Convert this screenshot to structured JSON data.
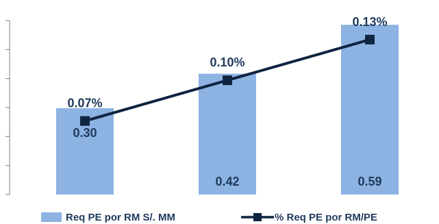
{
  "chart_data": {
    "type": "bar",
    "categories": [
      "",
      "",
      ""
    ],
    "series": [
      {
        "name": "Req PE por RM S/. MM",
        "type": "bar",
        "values": [
          0.3,
          0.42,
          0.59
        ],
        "labels": [
          "0.30",
          "0.42",
          "0.59"
        ],
        "color": "#8db3e2"
      },
      {
        "name": "% Req PE por RM/PE",
        "type": "line",
        "values": [
          0.07,
          0.1,
          0.13
        ],
        "labels": [
          "0.07%",
          "0.10%",
          "0.13%"
        ],
        "color": "#0f2440"
      }
    ],
    "ylim": [
      0,
      0.6
    ],
    "legend_position": "bottom",
    "grid": false
  }
}
